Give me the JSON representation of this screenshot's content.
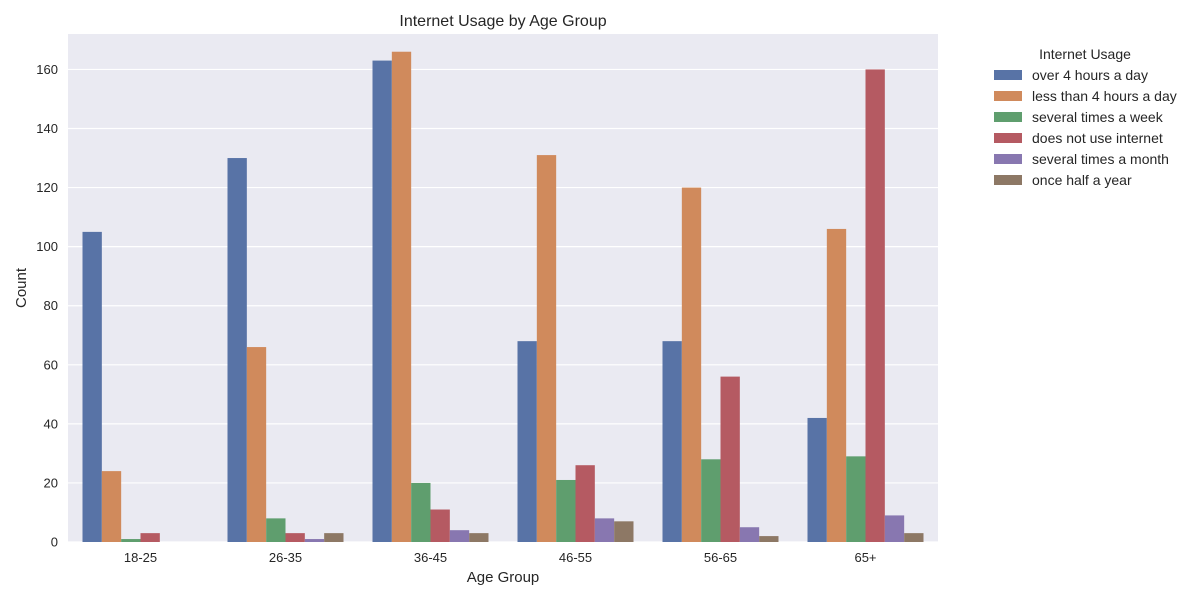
{
  "chart_data": {
    "type": "bar",
    "title": "Internet Usage by Age Group",
    "xlabel": "Age Group",
    "ylabel": "Count",
    "ylim": [
      0,
      172
    ],
    "yticks": [
      0,
      20,
      40,
      60,
      80,
      100,
      120,
      140,
      160
    ],
    "grid": true,
    "legend": {
      "title": "Internet Usage",
      "placement": "outside right"
    },
    "categories": [
      "18-25",
      "26-35",
      "36-45",
      "46-55",
      "56-65",
      "65+"
    ],
    "series": [
      {
        "name": "over 4 hours a day",
        "color": "#5873a6",
        "values": [
          105,
          130,
          163,
          68,
          68,
          42
        ]
      },
      {
        "name": "less than 4 hours a day",
        "color": "#d08a5c",
        "values": [
          24,
          66,
          166,
          131,
          120,
          106
        ]
      },
      {
        "name": "several times a week",
        "color": "#5f9e6e",
        "values": [
          1,
          8,
          20,
          21,
          28,
          29
        ]
      },
      {
        "name": "does not use internet",
        "color": "#b55a62",
        "values": [
          3,
          3,
          11,
          26,
          56,
          160
        ]
      },
      {
        "name": "several times a month",
        "color": "#8877b0",
        "values": [
          0,
          1,
          4,
          8,
          5,
          9
        ]
      },
      {
        "name": "once half a year",
        "color": "#8d7865",
        "values": [
          0,
          3,
          3,
          7,
          2,
          3
        ]
      }
    ],
    "colors": {
      "plot_background": "#eaeaf2",
      "grid": "#ffffff",
      "text": "#262626"
    }
  }
}
